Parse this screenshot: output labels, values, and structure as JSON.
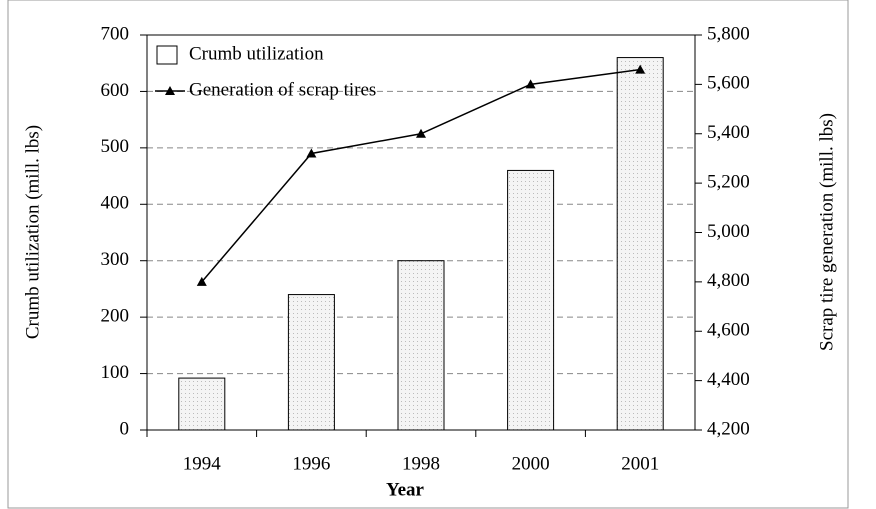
{
  "chart_data": {
    "type": "bar",
    "categories": [
      "1994",
      "1996",
      "1998",
      "2000",
      "2001"
    ],
    "series": [
      {
        "name": "Crumb utilization",
        "type": "bar",
        "color": "#f2f2f2",
        "values": [
          92,
          240,
          300,
          460,
          660
        ]
      },
      {
        "name": "Generation of scrap tires",
        "type": "line",
        "color": "#000000",
        "axis": "y2",
        "values": [
          4800,
          5320,
          5400,
          5600,
          5660
        ]
      }
    ],
    "xlabel": "Year",
    "ylabel": "Crumb utilization (mill. lbs)",
    "y2label": "Scrap tire generation (mill. lbs)",
    "ylim": [
      0,
      700
    ],
    "yticks": [
      0,
      100,
      200,
      300,
      400,
      500,
      600,
      700
    ],
    "y2lim": [
      4200,
      5800
    ],
    "y2ticks": [
      {
        "value": 4200,
        "label": "4,200"
      },
      {
        "value": 4400,
        "label": "4,400"
      },
      {
        "value": 4600,
        "label": "4,600"
      },
      {
        "value": 4800,
        "label": "4,800"
      },
      {
        "value": 5000,
        "label": "5,000"
      },
      {
        "value": 5200,
        "label": "5,200"
      },
      {
        "value": 5400,
        "label": "5,400"
      },
      {
        "value": 5600,
        "label": "5,600"
      },
      {
        "value": 5800,
        "label": "5,800"
      }
    ],
    "grid": true,
    "legend": "upper left"
  }
}
